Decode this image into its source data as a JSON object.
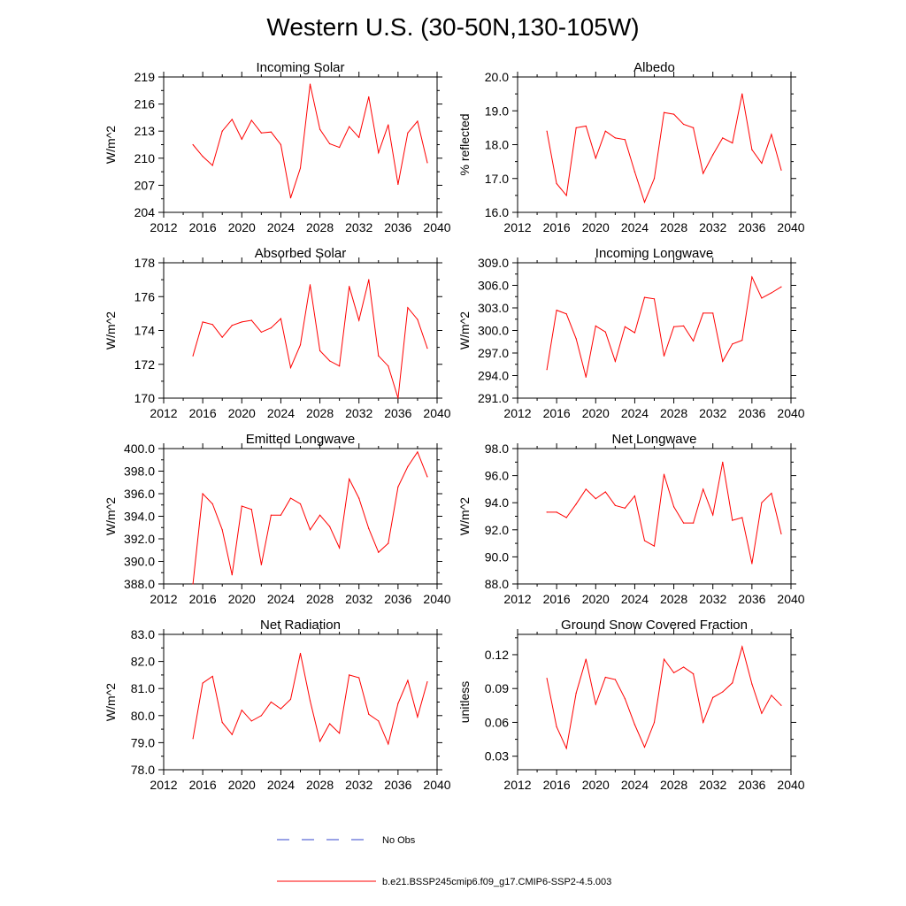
{
  "figure": {
    "title": "Western U.S. (30-50N,130-105W)"
  },
  "legend": {
    "entries": [
      {
        "label": "No Obs",
        "color": "#3344cc",
        "style": "dashed"
      },
      {
        "label": "b.e21.BSSP245cmip6.f09_g17.CMIP6-SSP2-4.5.003",
        "color": "#ff0000",
        "style": "solid"
      }
    ]
  },
  "chart_data": [
    {
      "type": "line",
      "title": "Incoming Solar",
      "ylabel": "W/m^2",
      "xlim": [
        2012,
        2040
      ],
      "xticks": [
        "2012",
        "2016",
        "2020",
        "2024",
        "2028",
        "2032",
        "2036",
        "2040"
      ],
      "ylim": [
        204,
        219
      ],
      "yticks": [
        "204",
        "207",
        "210",
        "213",
        "216",
        "219"
      ],
      "color": "#ff0000",
      "x": [
        2015,
        2016,
        2017,
        2018,
        2019,
        2020,
        2021,
        2022,
        2023,
        2024,
        2025,
        2026,
        2027,
        2028,
        2029,
        2030,
        2031,
        2032,
        2033,
        2034,
        2035,
        2036,
        2037,
        2038,
        2039
      ],
      "y": [
        211.5,
        210.2,
        209.2,
        213.0,
        214.3,
        212.1,
        214.2,
        212.8,
        212.9,
        211.5,
        205.6,
        208.9,
        218.2,
        213.2,
        211.6,
        211.2,
        213.5,
        212.3,
        216.8,
        210.6,
        213.7,
        207.1,
        212.8,
        214.1,
        209.5
      ]
    },
    {
      "type": "line",
      "title": "Albedo",
      "ylabel": "% reflected",
      "xlim": [
        2012,
        2040
      ],
      "xticks": [
        "2012",
        "2016",
        "2020",
        "2024",
        "2028",
        "2032",
        "2036",
        "2040"
      ],
      "ylim": [
        16.0,
        20.0
      ],
      "yticks": [
        "16.0",
        "17.0",
        "18.0",
        "19.0",
        "20.0"
      ],
      "color": "#ff0000",
      "x": [
        2015,
        2016,
        2017,
        2018,
        2019,
        2020,
        2021,
        2022,
        2023,
        2024,
        2025,
        2026,
        2027,
        2028,
        2029,
        2030,
        2031,
        2032,
        2033,
        2034,
        2035,
        2036,
        2037,
        2038,
        2039
      ],
      "y": [
        18.4,
        16.85,
        16.5,
        18.5,
        18.55,
        17.6,
        18.4,
        18.2,
        18.15,
        17.2,
        16.3,
        17.0,
        18.95,
        18.9,
        18.6,
        18.5,
        17.15,
        17.7,
        18.2,
        18.05,
        19.5,
        17.85,
        17.45,
        18.3,
        17.25
      ]
    },
    {
      "type": "line",
      "title": "Absorbed Solar",
      "ylabel": "W/m^2",
      "xlim": [
        2012,
        2040
      ],
      "xticks": [
        "2012",
        "2016",
        "2020",
        "2024",
        "2028",
        "2032",
        "2036",
        "2040"
      ],
      "ylim": [
        170,
        178
      ],
      "yticks": [
        "170",
        "172",
        "174",
        "176",
        "178"
      ],
      "color": "#ff0000",
      "x": [
        2015,
        2016,
        2017,
        2018,
        2019,
        2020,
        2021,
        2022,
        2023,
        2024,
        2025,
        2026,
        2027,
        2028,
        2029,
        2030,
        2031,
        2032,
        2033,
        2034,
        2035,
        2036,
        2037,
        2038,
        2039
      ],
      "y": [
        172.5,
        174.5,
        174.35,
        173.6,
        174.3,
        174.5,
        174.6,
        173.9,
        174.15,
        174.7,
        171.8,
        173.15,
        176.7,
        172.8,
        172.2,
        171.9,
        176.6,
        174.6,
        177.0,
        172.5,
        171.9,
        170.0,
        175.35,
        174.65,
        172.95
      ]
    },
    {
      "type": "line",
      "title": "Incoming Longwave",
      "ylabel": "W/m^2",
      "xlim": [
        2012,
        2040
      ],
      "xticks": [
        "2012",
        "2016",
        "2020",
        "2024",
        "2028",
        "2032",
        "2036",
        "2040"
      ],
      "ylim": [
        291.0,
        309.0
      ],
      "yticks": [
        "291.0",
        "294.0",
        "297.0",
        "300.0",
        "303.0",
        "306.0",
        "309.0"
      ],
      "color": "#ff0000",
      "x": [
        2015,
        2016,
        2017,
        2018,
        2019,
        2020,
        2021,
        2022,
        2023,
        2024,
        2025,
        2026,
        2027,
        2028,
        2029,
        2030,
        2031,
        2032,
        2033,
        2034,
        2035,
        2036,
        2037,
        2038,
        2039
      ],
      "y": [
        294.8,
        302.7,
        302.2,
        298.9,
        293.8,
        300.6,
        299.8,
        295.9,
        300.5,
        299.7,
        304.4,
        304.2,
        296.6,
        300.5,
        300.6,
        298.6,
        302.3,
        302.3,
        295.9,
        298.2,
        298.7,
        307.1,
        304.3,
        305.0,
        305.8
      ]
    },
    {
      "type": "line",
      "title": "Emitted Longwave",
      "ylabel": "W/m^2",
      "xlim": [
        2012,
        2040
      ],
      "xticks": [
        "2012",
        "2016",
        "2020",
        "2024",
        "2028",
        "2032",
        "2036",
        "2040"
      ],
      "ylim": [
        388.0,
        400.0
      ],
      "yticks": [
        "388.0",
        "390.0",
        "392.0",
        "394.0",
        "396.0",
        "398.0",
        "400.0"
      ],
      "color": "#ff0000",
      "x": [
        2015,
        2016,
        2017,
        2018,
        2019,
        2020,
        2021,
        2022,
        2023,
        2024,
        2025,
        2026,
        2027,
        2028,
        2029,
        2030,
        2031,
        2032,
        2033,
        2034,
        2035,
        2036,
        2037,
        2038,
        2039
      ],
      "y": [
        388.0,
        396.0,
        395.1,
        392.8,
        388.8,
        394.9,
        394.6,
        389.7,
        394.1,
        394.1,
        395.6,
        395.1,
        392.8,
        394.1,
        393.1,
        391.2,
        397.3,
        395.6,
        392.9,
        390.8,
        391.6,
        396.6,
        398.4,
        399.7,
        397.5
      ]
    },
    {
      "type": "line",
      "title": "Net Longwave",
      "ylabel": "W/m^2",
      "xlim": [
        2012,
        2040
      ],
      "xticks": [
        "2012",
        "2016",
        "2020",
        "2024",
        "2028",
        "2032",
        "2036",
        "2040"
      ],
      "ylim": [
        88.0,
        98.0
      ],
      "yticks": [
        "88.0",
        "90.0",
        "92.0",
        "94.0",
        "96.0",
        "98.0"
      ],
      "color": "#ff0000",
      "x": [
        2015,
        2016,
        2017,
        2018,
        2019,
        2020,
        2021,
        2022,
        2023,
        2024,
        2025,
        2026,
        2027,
        2028,
        2029,
        2030,
        2031,
        2032,
        2033,
        2034,
        2035,
        2036,
        2037,
        2038,
        2039
      ],
      "y": [
        93.3,
        93.3,
        92.9,
        93.9,
        95.0,
        94.3,
        94.8,
        93.8,
        93.6,
        94.5,
        91.2,
        90.8,
        96.1,
        93.7,
        92.5,
        92.5,
        95.0,
        93.1,
        97.0,
        92.7,
        92.9,
        89.5,
        94.0,
        94.7,
        91.7
      ]
    },
    {
      "type": "line",
      "title": "Net Radiation",
      "ylabel": "W/m^2",
      "xlim": [
        2012,
        2040
      ],
      "xticks": [
        "2012",
        "2016",
        "2020",
        "2024",
        "2028",
        "2032",
        "2036",
        "2040"
      ],
      "ylim": [
        78.0,
        83.0
      ],
      "yticks": [
        "78.0",
        "79.0",
        "80.0",
        "81.0",
        "82.0",
        "83.0"
      ],
      "color": "#ff0000",
      "x": [
        2015,
        2016,
        2017,
        2018,
        2019,
        2020,
        2021,
        2022,
        2023,
        2024,
        2025,
        2026,
        2027,
        2028,
        2029,
        2030,
        2031,
        2032,
        2033,
        2034,
        2035,
        2036,
        2037,
        2038,
        2039
      ],
      "y": [
        79.15,
        81.2,
        81.45,
        79.75,
        79.3,
        80.2,
        79.8,
        80.0,
        80.5,
        80.25,
        80.6,
        82.3,
        80.55,
        79.05,
        79.7,
        79.35,
        81.5,
        81.4,
        80.05,
        79.8,
        78.95,
        80.45,
        81.3,
        79.95,
        81.25
      ]
    },
    {
      "type": "line",
      "title": "Ground Snow Covered Fraction",
      "ylabel": "unitless",
      "xlim": [
        2012,
        2040
      ],
      "xticks": [
        "2012",
        "2016",
        "2020",
        "2024",
        "2028",
        "2032",
        "2036",
        "2040"
      ],
      "ylim": [
        0.018,
        0.138
      ],
      "yticks": [
        "0.03",
        "0.06",
        "0.09",
        "0.12"
      ],
      "ytick_values": [
        0.03,
        0.06,
        0.09,
        0.12
      ],
      "color": "#ff0000",
      "x": [
        2015,
        2016,
        2017,
        2018,
        2019,
        2020,
        2021,
        2022,
        2023,
        2024,
        2025,
        2026,
        2027,
        2028,
        2029,
        2030,
        2031,
        2032,
        2033,
        2034,
        2035,
        2036,
        2037,
        2038,
        2039
      ],
      "y": [
        0.099,
        0.056,
        0.037,
        0.086,
        0.116,
        0.076,
        0.1,
        0.098,
        0.081,
        0.058,
        0.038,
        0.06,
        0.116,
        0.104,
        0.109,
        0.103,
        0.06,
        0.082,
        0.087,
        0.095,
        0.127,
        0.094,
        0.068,
        0.084,
        0.075
      ]
    }
  ]
}
